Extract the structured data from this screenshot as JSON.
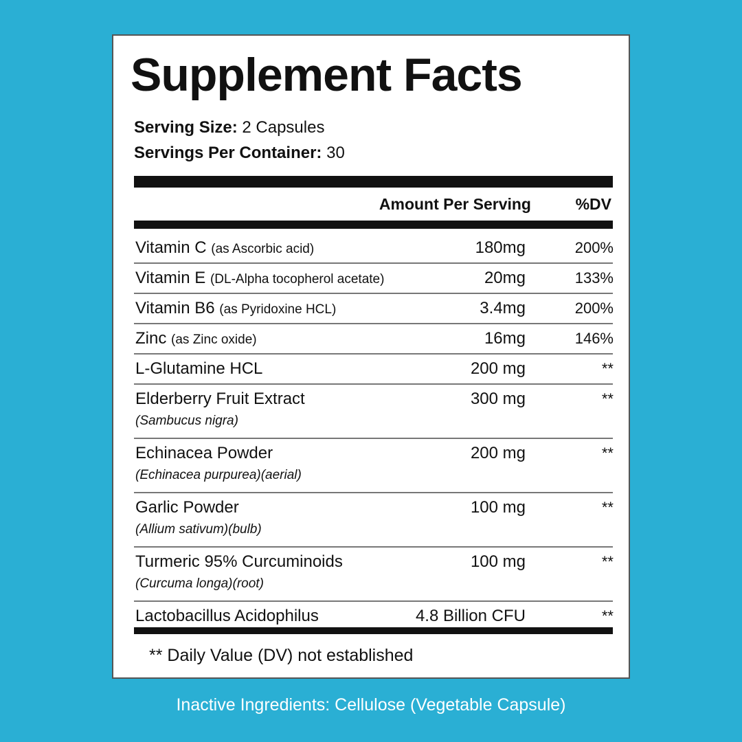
{
  "title": "Supplement Facts",
  "serving": {
    "size_label": "Serving Size:",
    "size_value": "2 Capsules",
    "per_container_label": "Servings Per Container:",
    "per_container_value": "30"
  },
  "header": {
    "amount": "Amount Per Serving",
    "dv": "%DV"
  },
  "rows": [
    {
      "name": "Vitamin C",
      "detail": "(as Ascorbic acid)",
      "amount": "180mg",
      "dv": "200%"
    },
    {
      "name": "Vitamin E",
      "detail": "(DL-Alpha tocopherol acetate)",
      "amount": "20mg",
      "dv": "133%"
    },
    {
      "name": "Vitamin B6",
      "detail": "(as Pyridoxine HCL)",
      "amount": "3.4mg",
      "dv": "200%"
    },
    {
      "name": "Zinc",
      "detail": "(as Zinc oxide)",
      "amount": "16mg",
      "dv": "146%"
    },
    {
      "name": "L-Glutamine HCL",
      "amount": "200 mg",
      "dv": "**"
    },
    {
      "name": "Elderberry Fruit Extract",
      "botanical": "(Sambucus nigra)",
      "amount": "300 mg",
      "dv": "**"
    },
    {
      "name": "Echinacea Powder",
      "botanical": "(Echinacea purpurea)(aerial)",
      "amount": "200 mg",
      "dv": "**"
    },
    {
      "name": "Garlic Powder",
      "botanical": "(Allium sativum)(bulb)",
      "amount": "100 mg",
      "dv": "**"
    },
    {
      "name": "Turmeric 95% Curcuminoids",
      "botanical": "(Curcuma longa)(root)",
      "amount": "100 mg",
      "dv": "**"
    },
    {
      "name": "Lactobacillus Acidophilus",
      "amount": "4.8 Billion CFU",
      "dv": "**"
    }
  ],
  "footnote": "** Daily Value (DV) not established",
  "inactive": "Inactive Ingredients: Cellulose (Vegetable Capsule)"
}
